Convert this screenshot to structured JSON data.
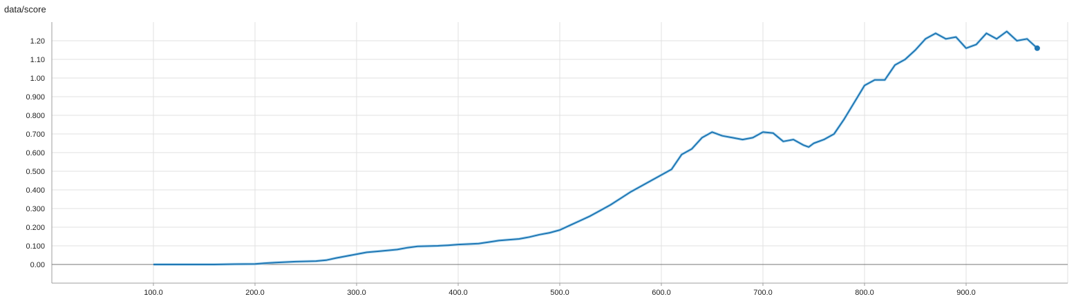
{
  "chart_data": {
    "type": "line",
    "title": "data/score",
    "xlabel": "",
    "ylabel": "",
    "grid": true,
    "xlim": [
      0,
      1000
    ],
    "ylim": [
      -0.1,
      1.3
    ],
    "x_ticks": [
      100,
      200,
      300,
      400,
      500,
      600,
      700,
      800,
      900
    ],
    "x_tick_labels": [
      "100.0",
      "200.0",
      "300.0",
      "400.0",
      "500.0",
      "600.0",
      "700.0",
      "800.0",
      "900.0"
    ],
    "y_ticks": [
      0,
      0.1,
      0.2,
      0.3,
      0.4,
      0.5,
      0.6,
      0.7,
      0.8,
      0.9,
      1.0,
      1.1,
      1.2
    ],
    "y_tick_labels": [
      "0.00",
      "0.100",
      "0.200",
      "0.300",
      "0.400",
      "0.500",
      "0.600",
      "0.700",
      "0.800",
      "0.900",
      "1.00",
      "1.10",
      "1.20"
    ],
    "series": [
      {
        "name": "data/score",
        "color": "#1f77b4",
        "shadow_color": "#aad4ee",
        "x": [
          100,
          120,
          140,
          160,
          180,
          200,
          210,
          220,
          240,
          260,
          270,
          280,
          290,
          300,
          310,
          320,
          340,
          350,
          360,
          380,
          390,
          400,
          420,
          430,
          440,
          460,
          470,
          480,
          490,
          500,
          510,
          520,
          530,
          540,
          550,
          560,
          570,
          580,
          590,
          600,
          610,
          620,
          630,
          640,
          650,
          660,
          670,
          680,
          690,
          700,
          710,
          720,
          730,
          740,
          745,
          750,
          760,
          770,
          780,
          790,
          800,
          810,
          815,
          820,
          830,
          840,
          850,
          860,
          870,
          880,
          890,
          900,
          910,
          920,
          930,
          940,
          950,
          960,
          970
        ],
        "y": [
          0.0,
          0.0,
          0.0,
          0.0,
          0.002,
          0.003,
          0.007,
          0.01,
          0.015,
          0.018,
          0.023,
          0.035,
          0.045,
          0.055,
          0.065,
          0.07,
          0.08,
          0.09,
          0.097,
          0.1,
          0.103,
          0.107,
          0.112,
          0.12,
          0.128,
          0.137,
          0.147,
          0.16,
          0.17,
          0.185,
          0.21,
          0.235,
          0.26,
          0.29,
          0.32,
          0.355,
          0.39,
          0.42,
          0.45,
          0.48,
          0.51,
          0.59,
          0.62,
          0.68,
          0.71,
          0.69,
          0.68,
          0.67,
          0.68,
          0.71,
          0.705,
          0.66,
          0.67,
          0.64,
          0.63,
          0.65,
          0.67,
          0.7,
          0.78,
          0.87,
          0.96,
          0.99,
          0.99,
          0.99,
          1.07,
          1.1,
          1.15,
          1.21,
          1.24,
          1.21,
          1.22,
          1.16,
          1.18,
          1.24,
          1.21,
          1.25,
          1.2,
          1.21,
          1.16
        ]
      }
    ]
  }
}
